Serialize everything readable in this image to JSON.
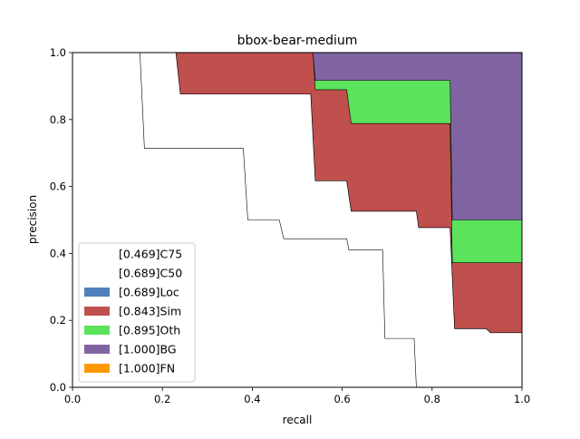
{
  "chart_data": {
    "type": "area",
    "title": "bbox-bear-medium",
    "xlabel": "recall",
    "ylabel": "precision",
    "xlim": [
      0,
      1
    ],
    "ylim": [
      0,
      1
    ],
    "xticks": [
      "0.0",
      "0.2",
      "0.4",
      "0.6",
      "0.8",
      "1.0"
    ],
    "yticks": [
      "0.0",
      "0.2",
      "0.4",
      "0.6",
      "0.8",
      "1.0"
    ],
    "grid": false,
    "legend_position": "lower-left",
    "series": [
      {
        "name": "[1.000]FN",
        "color": "#ff9900",
        "points": [
          [
            0,
            1
          ],
          [
            1,
            1
          ]
        ]
      },
      {
        "name": "[1.000]BG",
        "color": "#8064a2",
        "points": [
          [
            0,
            1
          ],
          [
            0.535,
            1
          ],
          [
            0.535,
            1
          ],
          [
            0.84,
            1
          ],
          [
            0.85,
            1
          ],
          [
            1,
            1
          ]
        ]
      },
      {
        "name": "[0.895]Oth",
        "color": "#5be35b",
        "points": [
          [
            0,
            1
          ],
          [
            0.23,
            1
          ],
          [
            0.235,
            1
          ],
          [
            0.535,
            1
          ],
          [
            0.54,
            0.917
          ],
          [
            0.84,
            0.917
          ],
          [
            0.845,
            0.5
          ],
          [
            0.85,
            0.5
          ],
          [
            1,
            0.5
          ]
        ]
      },
      {
        "name": "[0.843]Sim",
        "color": "#c0504d",
        "points": [
          [
            0,
            1
          ],
          [
            0.23,
            1
          ],
          [
            0.235,
            1
          ],
          [
            0.535,
            1
          ],
          [
            0.54,
            0.889
          ],
          [
            0.61,
            0.889
          ],
          [
            0.62,
            0.788
          ],
          [
            0.84,
            0.788
          ],
          [
            0.845,
            0.372
          ],
          [
            0.85,
            0.372
          ],
          [
            1,
            0.372
          ]
        ]
      },
      {
        "name": "[0.689]Loc",
        "color": "#4f81bd",
        "points": [
          [
            0,
            1
          ],
          [
            0.23,
            1
          ],
          [
            0.24,
            0.876
          ],
          [
            0.53,
            0.876
          ],
          [
            0.54,
            0.617
          ],
          [
            0.61,
            0.617
          ],
          [
            0.62,
            0.526
          ],
          [
            0.765,
            0.526
          ],
          [
            0.77,
            0.477
          ],
          [
            0.84,
            0.477
          ],
          [
            0.85,
            0.175
          ],
          [
            0.92,
            0.175
          ],
          [
            0.93,
            0.163
          ],
          [
            1,
            0.163
          ]
        ]
      },
      {
        "name": "[0.689]C50",
        "color": "#ffffff",
        "points": [
          [
            0,
            1
          ],
          [
            0.23,
            1
          ],
          [
            0.24,
            0.876
          ],
          [
            0.53,
            0.876
          ],
          [
            0.54,
            0.617
          ],
          [
            0.61,
            0.617
          ],
          [
            0.62,
            0.526
          ],
          [
            0.765,
            0.526
          ],
          [
            0.77,
            0.477
          ],
          [
            0.84,
            0.477
          ],
          [
            0.85,
            0.175
          ],
          [
            0.92,
            0.175
          ],
          [
            0.93,
            0.163
          ],
          [
            1,
            0.163
          ]
        ]
      },
      {
        "name": "[0.469]C75",
        "color": "#ffffff",
        "points": [
          [
            0,
            1
          ],
          [
            0.15,
            1
          ],
          [
            0.16,
            0.714
          ],
          [
            0.38,
            0.714
          ],
          [
            0.39,
            0.5
          ],
          [
            0.46,
            0.5
          ],
          [
            0.47,
            0.444
          ],
          [
            0.61,
            0.444
          ],
          [
            0.615,
            0.41
          ],
          [
            0.69,
            0.41
          ],
          [
            0.695,
            0.146
          ],
          [
            0.76,
            0.146
          ],
          [
            0.765,
            0
          ],
          [
            1,
            0
          ]
        ]
      }
    ],
    "legend": [
      {
        "label": "[0.469]C75",
        "color": "#ffffff"
      },
      {
        "label": "[0.689]C50",
        "color": "#ffffff"
      },
      {
        "label": "[0.689]Loc",
        "color": "#4f81bd"
      },
      {
        "label": "[0.843]Sim",
        "color": "#c0504d"
      },
      {
        "label": "[0.895]Oth",
        "color": "#5be35b"
      },
      {
        "label": "[1.000]BG",
        "color": "#8064a2"
      },
      {
        "label": "[1.000]FN",
        "color": "#ff9900"
      }
    ]
  }
}
